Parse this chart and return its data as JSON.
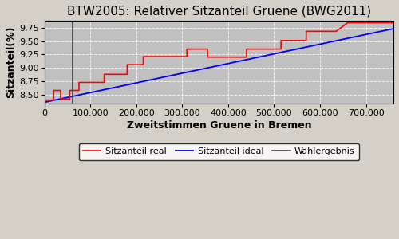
{
  "title": "BTW2005: Relativer Sitzanteil Gruene (BWG2011)",
  "xlabel": "Zweitstimmen Gruene in Bremen",
  "ylabel": "Sitzanteil(%)",
  "xlim": [
    0,
    760000
  ],
  "ylim": [
    8.33,
    9.88
  ],
  "yticks": [
    8.5,
    8.75,
    9.0,
    9.25,
    9.5,
    9.75
  ],
  "xticks": [
    0,
    100000,
    200000,
    300000,
    400000,
    500000,
    600000,
    700000
  ],
  "wahlergebnis_x": 62000,
  "ideal_line_x": [
    0,
    760000
  ],
  "ideal_line_y": [
    8.36,
    9.73
  ],
  "step_line_x": [
    0,
    20000,
    20001,
    35000,
    35001,
    55000,
    55001,
    75000,
    75001,
    130000,
    130001,
    160000,
    160001,
    180000,
    180001,
    215000,
    215001,
    255000,
    255001,
    310000,
    310001,
    355000,
    355001,
    440000,
    440001,
    465000,
    465001,
    490000,
    490001,
    515000,
    515001,
    545000,
    545001,
    570000,
    570001,
    605000,
    605001,
    635000,
    635001,
    660000,
    660001,
    720000,
    720001,
    760000
  ],
  "step_line_y": [
    8.4,
    8.4,
    8.58,
    8.58,
    8.42,
    8.42,
    8.58,
    8.58,
    8.73,
    8.73,
    8.88,
    8.88,
    8.88,
    8.88,
    9.06,
    9.06,
    9.21,
    9.21,
    9.21,
    9.21,
    9.35,
    9.35,
    9.2,
    9.2,
    9.35,
    9.35,
    9.35,
    9.35,
    9.35,
    9.35,
    9.51,
    9.51,
    9.51,
    9.51,
    9.68,
    9.68,
    9.68,
    9.68,
    9.68,
    9.84,
    9.84,
    9.84,
    9.84,
    9.84
  ],
  "background_color": "#c0c0c0",
  "fig_background_color": "#d4d0c8",
  "line_real_color": "red",
  "line_ideal_color": "blue",
  "line_wahlergebnis_color": "#404040",
  "legend_labels": [
    "Sitzanteil real",
    "Sitzanteil ideal",
    "Wahlergebnis"
  ],
  "title_fontsize": 11,
  "axis_label_fontsize": 9,
  "tick_fontsize": 8,
  "legend_fontsize": 8
}
